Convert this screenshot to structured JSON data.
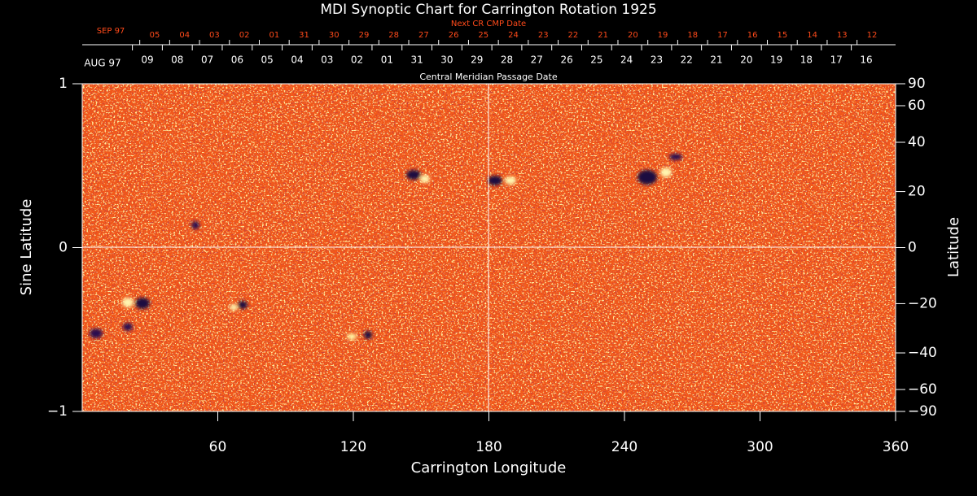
{
  "chart_data": {
    "type": "image",
    "title": "MDI Synoptic Chart for Carrington Rotation 1925",
    "x_label": "Carrington Longitude",
    "y_label": "Sine Latitude",
    "y2_label": "Latitude",
    "xlim": [
      0,
      360
    ],
    "xticks": [
      60,
      120,
      180,
      240,
      300,
      360
    ],
    "ylim": [
      -1,
      1
    ],
    "yticks": [
      {
        "value": -1,
        "label": "−1"
      },
      0,
      1
    ],
    "y2lim": [
      -90,
      90
    ],
    "y2scale": "sine",
    "y2ticks": [
      90,
      60,
      40,
      20,
      0,
      {
        "value": -20,
        "label": "−20"
      },
      {
        "value": -40,
        "label": "−40"
      },
      {
        "value": -60,
        "label": "−60"
      },
      {
        "value": -90,
        "label": "−90"
      }
    ],
    "top_axis": {
      "label": "Central Meridian Passage Date",
      "start": "AUG 97",
      "dates": [
        "09",
        "08",
        "07",
        "06",
        "05",
        "04",
        "03",
        "02",
        "01",
        "31",
        "30",
        "29",
        "28",
        "27",
        "26",
        "25",
        "24",
        "23",
        "22",
        "21",
        "20",
        "19",
        "18",
        "17",
        "16"
      ]
    },
    "next_axis": {
      "label": "Next CR CMP Date",
      "start": "SEP 97",
      "color": "#ff4a1a",
      "dates": [
        "05",
        "04",
        "03",
        "02",
        "01",
        "31",
        "30",
        "29",
        "28",
        "27",
        "26",
        "25",
        "24",
        "23",
        "22",
        "21",
        "20",
        "19",
        "18",
        "17",
        "16",
        "15",
        "14",
        "13",
        "12"
      ]
    }
  }
}
